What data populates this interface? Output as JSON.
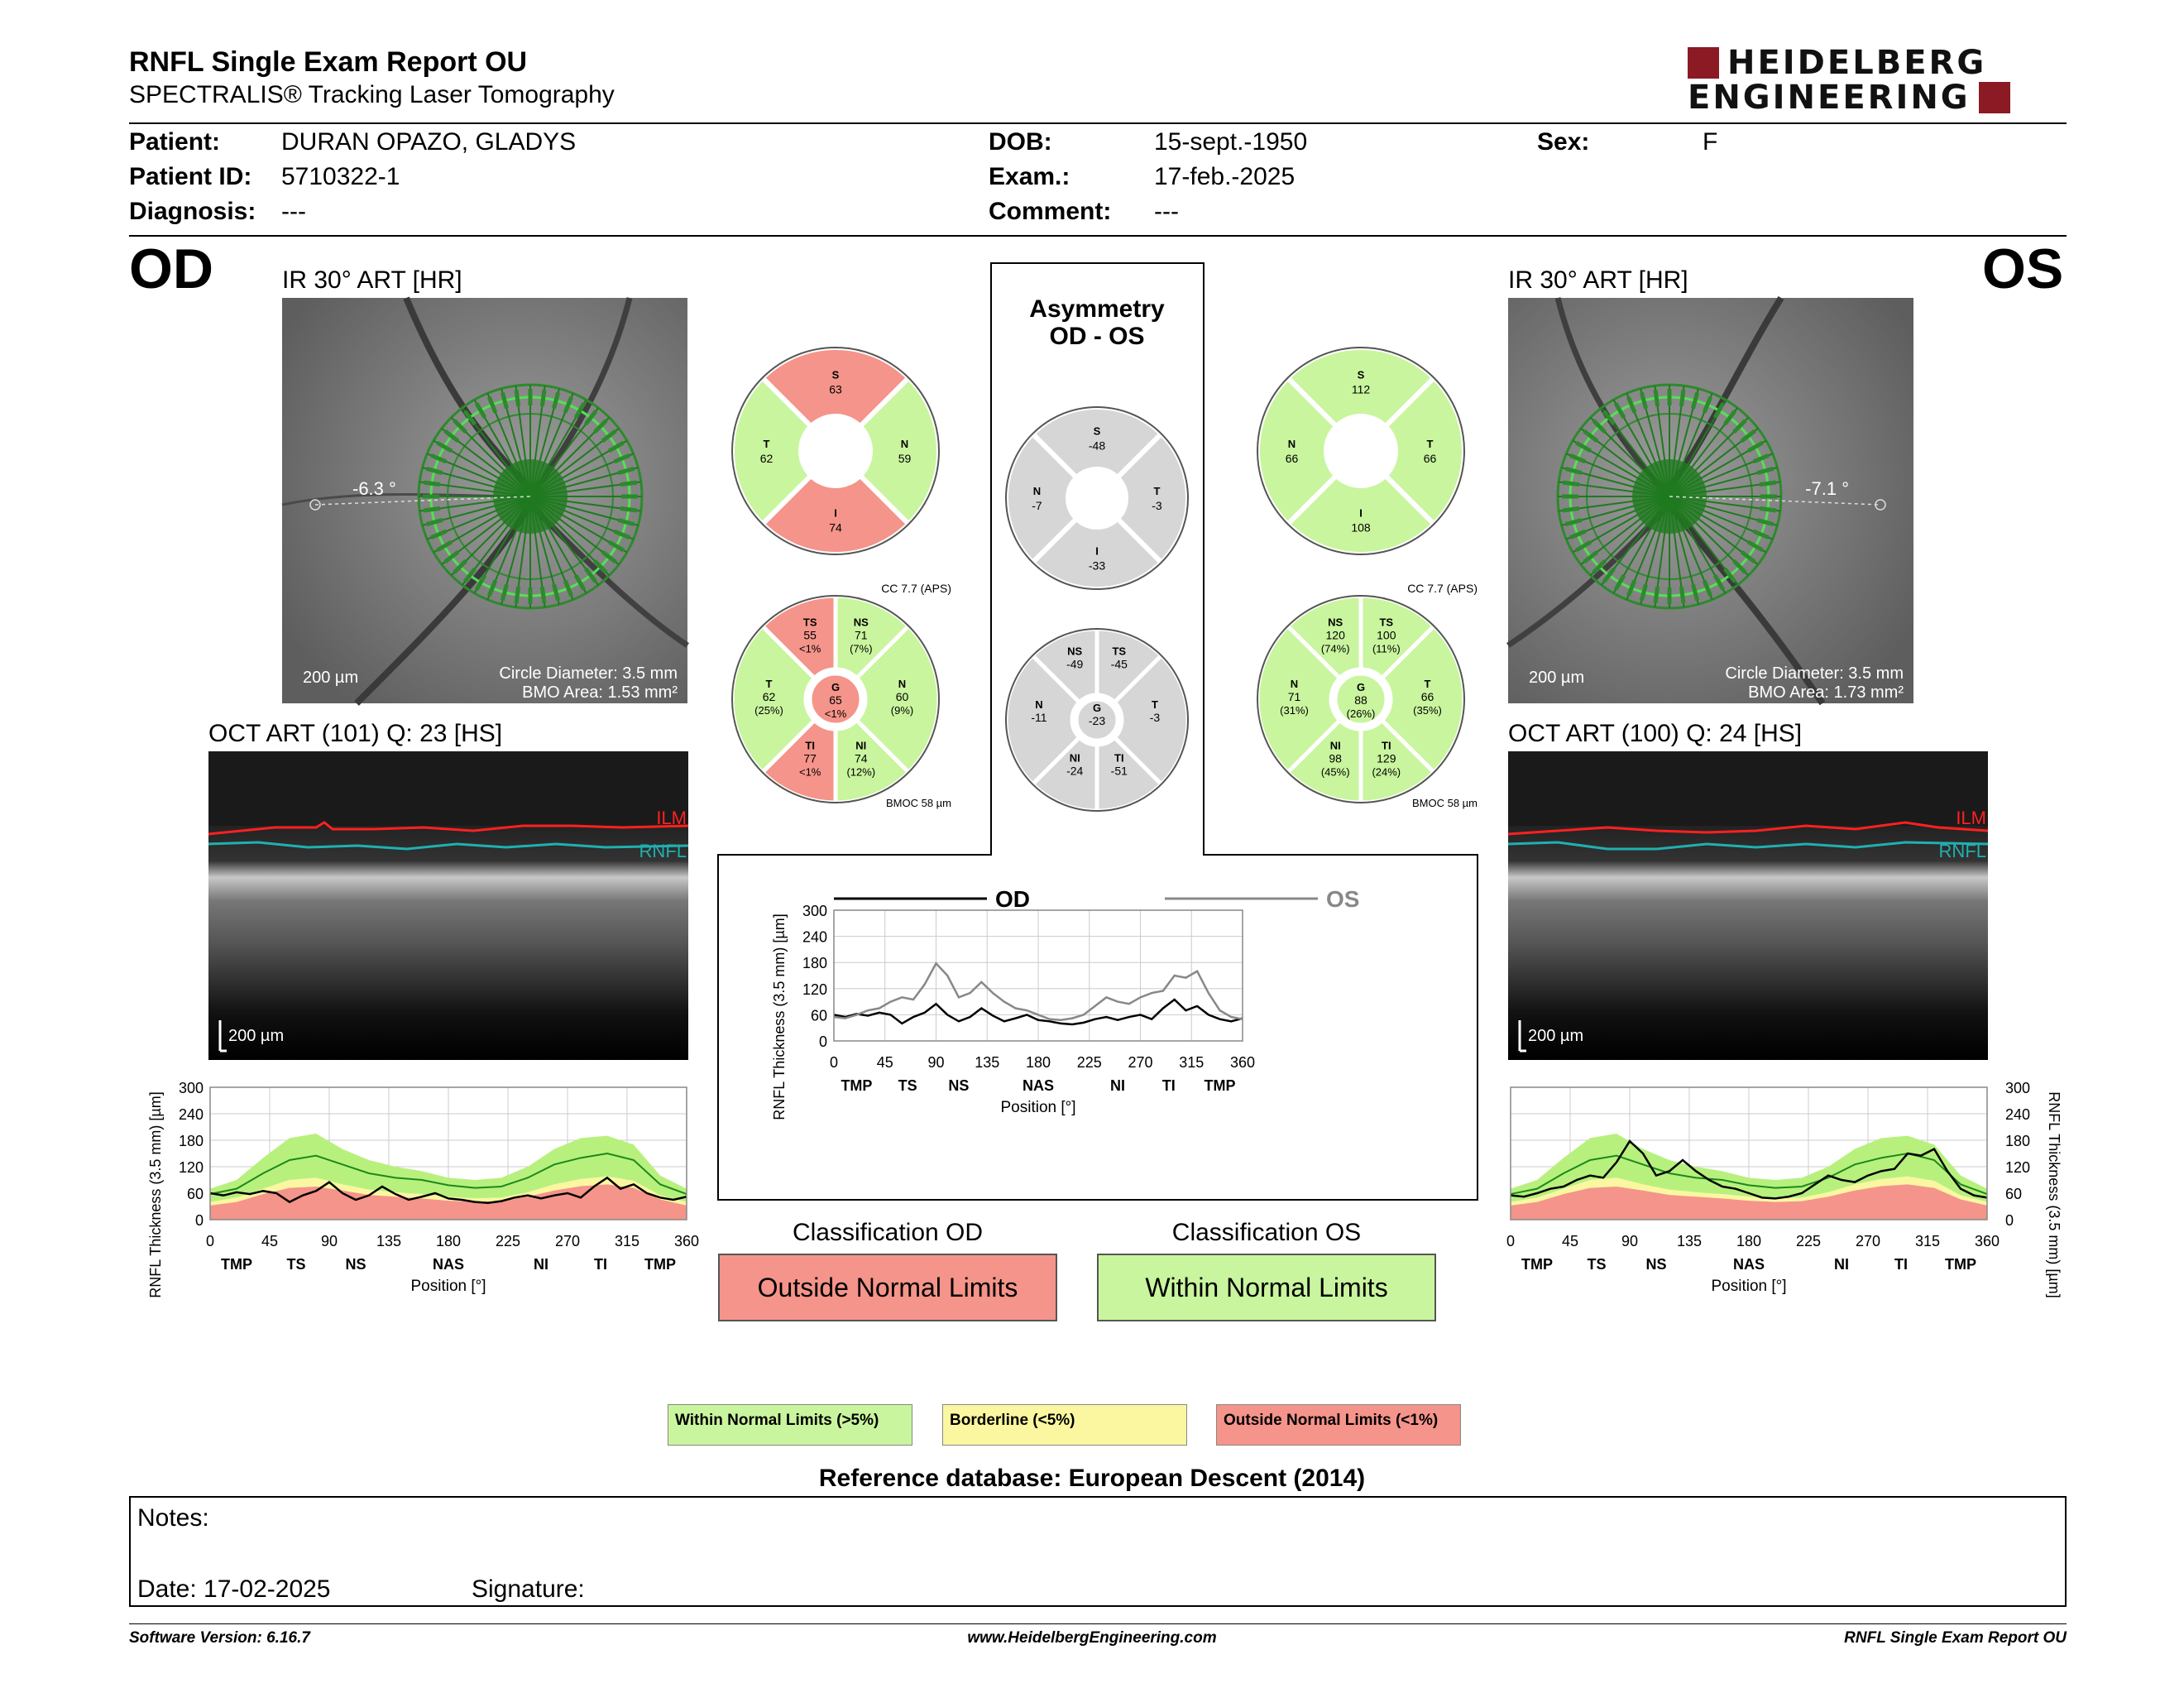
{
  "header": {
    "title": "RNFL Single Exam Report OU",
    "subtitle": "SPECTRALIS® Tracking Laser Tomography",
    "logo_line1": "HEIDELBERG",
    "logo_line2": "ENGINEERING"
  },
  "patient": {
    "patient_label": "Patient:",
    "patient_value": "DURAN OPAZO, GLADYS",
    "id_label": "Patient ID:",
    "id_value": "5710322-1",
    "diag_label": "Diagnosis:",
    "diag_value": "---",
    "dob_label": "DOB:",
    "dob_value": "15-sept.-1950",
    "exam_label": "Exam.:",
    "exam_value": "17-feb.-2025",
    "comment_label": "Comment:",
    "comment_value": "---",
    "sex_label": "Sex:",
    "sex_value": "F"
  },
  "od": {
    "eye": "OD",
    "ir_label": "IR 30° ART [HR]",
    "angle": "-6.3 °",
    "scale": "200 µm",
    "circle_diameter": "Circle Diameter: 3.5 mm",
    "bmo_area": "BMO Area: 1.53 mm²",
    "oct_label": "OCT ART (101) Q: 23 [HS]",
    "ilm": "ILM",
    "rnfl": "RNFL",
    "oct_scale": "200 µm",
    "cc": "CC 7.7 (APS)",
    "bmoc": "BMOC 58 µm",
    "q4": {
      "S": "63",
      "N": "59",
      "I": "74",
      "T": "62"
    },
    "q4_status": {
      "S": "red",
      "N": "green",
      "I": "red",
      "T": "green"
    },
    "sectors": {
      "TS": [
        "TS",
        "55",
        "<1%"
      ],
      "NS": [
        "NS",
        "71",
        "(7%)"
      ],
      "N": [
        "N",
        "60",
        "(9%)"
      ],
      "NI": [
        "NI",
        "74",
        "(12%)"
      ],
      "TI": [
        "TI",
        "77",
        "<1%"
      ],
      "T": [
        "T",
        "62",
        "(25%)"
      ],
      "G": [
        "G",
        "65",
        "<1%"
      ]
    },
    "sector_status": {
      "TS": "red",
      "NS": "green",
      "N": "green",
      "NI": "green",
      "TI": "red",
      "T": "green",
      "G": "red"
    }
  },
  "os": {
    "eye": "OS",
    "ir_label": "IR 30° ART [HR]",
    "angle": "-7.1 °",
    "scale": "200 µm",
    "circle_diameter": "Circle Diameter: 3.5 mm",
    "bmo_area": "BMO Area: 1.73 mm²",
    "oct_label": "OCT ART (100) Q: 24 [HS]",
    "ilm": "ILM",
    "rnfl": "RNFL",
    "oct_scale": "200 µm",
    "cc": "CC 7.7 (APS)",
    "bmoc": "BMOC 58 µm",
    "q4": {
      "S": "112",
      "N": "66",
      "I": "108",
      "T": "66"
    },
    "q4_status": {
      "S": "green",
      "N": "green",
      "I": "green",
      "T": "green"
    },
    "sectors": {
      "NS": [
        "NS",
        "120",
        "(74%)"
      ],
      "TS": [
        "TS",
        "100",
        "(11%)"
      ],
      "T": [
        "T",
        "66",
        "(35%)"
      ],
      "TI": [
        "TI",
        "129",
        "(24%)"
      ],
      "NI": [
        "NI",
        "98",
        "(45%)"
      ],
      "N": [
        "N",
        "71",
        "(31%)"
      ],
      "G": [
        "G",
        "88",
        "(26%)"
      ]
    },
    "sector_status": {
      "NS": "green",
      "TS": "green",
      "T": "green",
      "TI": "green",
      "NI": "green",
      "N": "green",
      "G": "green"
    }
  },
  "asymmetry": {
    "title1": "Asymmetry",
    "title2": "OD - OS",
    "q4": {
      "S": "-48",
      "N": "-7",
      "I": "-33",
      "T": "-3"
    },
    "sectors": {
      "NS": [
        "NS",
        "-49"
      ],
      "TS": [
        "TS",
        "-45"
      ],
      "T": [
        "T",
        "-3"
      ],
      "TI": [
        "TI",
        "-51"
      ],
      "NI": [
        "NI",
        "-24"
      ],
      "N": [
        "N",
        "-11"
      ],
      "G": [
        "G",
        "-23"
      ]
    }
  },
  "classification": {
    "od_title": "Classification OD",
    "od_value": "Outside Normal Limits",
    "os_title": "Classification OS",
    "os_value": "Within Normal Limits"
  },
  "legend": {
    "wnl": "Within Normal Limits (>5%)",
    "bl": "Borderline (<5%)",
    "onl": "Outside Normal Limits (<1%)"
  },
  "reference": "Reference database: European Descent (2014)",
  "notes": {
    "notes_label": "Notes:",
    "date_label": "Date: 17-02-2025",
    "signature_label": "Signature:"
  },
  "footer": {
    "version": "Software Version: 6.16.7",
    "url": "www.HeidelbergEngineering.com",
    "report": "RNFL Single Exam Report OU"
  },
  "colors": {
    "green": "#c9f59e",
    "yellow": "#faf7a0",
    "red": "#f5948a",
    "gray": "#d6d6d6"
  },
  "chart_data": [
    {
      "type": "line",
      "title": "",
      "ylabel": "RNFL Thickness (3.5 mm) [µm]",
      "xlabel": "Position [°]",
      "ylim": [
        0,
        300
      ],
      "xlim": [
        0,
        360
      ],
      "x_ticks": [
        0,
        45,
        90,
        135,
        180,
        225,
        270,
        315,
        360
      ],
      "y_ticks": [
        0,
        60,
        120,
        180,
        240,
        300
      ],
      "sector_labels": [
        [
          "TMP",
          20
        ],
        [
          "TS",
          65
        ],
        [
          "NS",
          110
        ],
        [
          "NAS",
          180
        ],
        [
          "NI",
          250
        ],
        [
          "TI",
          295
        ],
        [
          "TMP",
          340
        ]
      ],
      "series": [
        {
          "name": "OD",
          "x": [
            0,
            10,
            20,
            30,
            40,
            50,
            60,
            70,
            80,
            90,
            100,
            110,
            120,
            130,
            140,
            150,
            160,
            170,
            180,
            190,
            200,
            210,
            220,
            230,
            240,
            250,
            260,
            270,
            280,
            290,
            300,
            310,
            320,
            330,
            340,
            350,
            360
          ],
          "values": [
            60,
            55,
            62,
            58,
            65,
            60,
            40,
            55,
            65,
            85,
            60,
            45,
            55,
            75,
            58,
            45,
            52,
            60,
            48,
            45,
            40,
            38,
            42,
            50,
            55,
            48,
            55,
            60,
            50,
            75,
            95,
            70,
            80,
            60,
            50,
            45,
            52
          ]
        },
        {
          "name": "OS",
          "x": [
            0,
            10,
            20,
            30,
            40,
            50,
            60,
            70,
            80,
            90,
            100,
            110,
            120,
            130,
            140,
            150,
            160,
            170,
            180,
            190,
            200,
            210,
            220,
            230,
            240,
            250,
            260,
            270,
            280,
            290,
            300,
            310,
            320,
            330,
            340,
            350,
            360
          ],
          "values": [
            55,
            52,
            60,
            70,
            75,
            90,
            100,
            95,
            130,
            178,
            150,
            100,
            110,
            135,
            110,
            90,
            75,
            70,
            60,
            50,
            48,
            52,
            60,
            80,
            100,
            90,
            85,
            100,
            110,
            115,
            150,
            145,
            160,
            110,
            70,
            55,
            50
          ]
        }
      ]
    },
    {
      "type": "area",
      "title": "",
      "ylabel": "RNFL Thickness (3.5 mm) [µm]",
      "xlabel": "Position [°]",
      "ylim": [
        0,
        300
      ],
      "xlim": [
        0,
        360
      ],
      "x_ticks": [
        0,
        45,
        90,
        135,
        180,
        225,
        270,
        315,
        360
      ],
      "y_ticks": [
        0,
        60,
        120,
        180,
        240,
        300
      ],
      "sector_labels": [
        [
          "TMP",
          20
        ],
        [
          "TS",
          65
        ],
        [
          "NS",
          110
        ],
        [
          "NAS",
          180
        ],
        [
          "NI",
          250
        ],
        [
          "TI",
          295
        ],
        [
          "TMP",
          340
        ]
      ],
      "x": [
        0,
        20,
        40,
        60,
        80,
        100,
        120,
        140,
        160,
        180,
        200,
        220,
        240,
        260,
        280,
        300,
        320,
        340,
        360
      ],
      "normal_upper": [
        70,
        90,
        140,
        185,
        195,
        160,
        135,
        120,
        110,
        95,
        90,
        95,
        120,
        160,
        185,
        190,
        170,
        100,
        70
      ],
      "normal_mean": [
        58,
        70,
        105,
        135,
        145,
        125,
        105,
        95,
        90,
        78,
        72,
        75,
        95,
        125,
        140,
        150,
        135,
        80,
        58
      ],
      "borderline_upper": [
        40,
        50,
        70,
        90,
        95,
        80,
        68,
        62,
        58,
        52,
        48,
        50,
        62,
        80,
        92,
        98,
        88,
        55,
        40
      ],
      "onl_upper": [
        32,
        40,
        58,
        72,
        75,
        66,
        56,
        52,
        48,
        43,
        40,
        42,
        52,
        66,
        76,
        80,
        72,
        46,
        32
      ],
      "series": [
        {
          "name": "OD",
          "x": [
            0,
            10,
            20,
            30,
            40,
            50,
            60,
            70,
            80,
            90,
            100,
            110,
            120,
            130,
            140,
            150,
            160,
            170,
            180,
            190,
            200,
            210,
            220,
            230,
            240,
            250,
            260,
            270,
            280,
            290,
            300,
            310,
            320,
            330,
            340,
            350,
            360
          ],
          "values": [
            60,
            55,
            62,
            58,
            65,
            60,
            40,
            55,
            65,
            85,
            60,
            45,
            55,
            75,
            58,
            45,
            52,
            60,
            48,
            45,
            40,
            38,
            42,
            50,
            55,
            48,
            55,
            60,
            50,
            75,
            95,
            70,
            80,
            60,
            50,
            45,
            52
          ]
        }
      ]
    },
    {
      "type": "area",
      "title": "",
      "ylabel": "RNFL Thickness (3.5 mm) [µm]",
      "xlabel": "Position [°]",
      "ylim": [
        0,
        300
      ],
      "xlim": [
        0,
        360
      ],
      "x_ticks": [
        0,
        45,
        90,
        135,
        180,
        225,
        270,
        315,
        360
      ],
      "y_ticks": [
        0,
        60,
        120,
        180,
        240,
        300
      ],
      "sector_labels": [
        [
          "TMP",
          20
        ],
        [
          "TS",
          65
        ],
        [
          "NS",
          110
        ],
        [
          "NAS",
          180
        ],
        [
          "NI",
          250
        ],
        [
          "TI",
          295
        ],
        [
          "TMP",
          340
        ]
      ],
      "x": [
        0,
        20,
        40,
        60,
        80,
        100,
        120,
        140,
        160,
        180,
        200,
        220,
        240,
        260,
        280,
        300,
        320,
        340,
        360
      ],
      "normal_upper": [
        70,
        90,
        140,
        185,
        195,
        160,
        135,
        120,
        110,
        95,
        90,
        95,
        120,
        160,
        185,
        190,
        170,
        100,
        70
      ],
      "normal_mean": [
        58,
        70,
        105,
        135,
        145,
        125,
        105,
        95,
        90,
        78,
        72,
        75,
        95,
        125,
        140,
        150,
        135,
        80,
        58
      ],
      "borderline_upper": [
        40,
        50,
        70,
        90,
        95,
        80,
        68,
        62,
        58,
        52,
        48,
        50,
        62,
        80,
        92,
        98,
        88,
        55,
        40
      ],
      "onl_upper": [
        32,
        40,
        58,
        72,
        75,
        66,
        56,
        52,
        48,
        43,
        40,
        42,
        52,
        66,
        76,
        80,
        72,
        46,
        32
      ],
      "series": [
        {
          "name": "OS",
          "x": [
            0,
            10,
            20,
            30,
            40,
            50,
            60,
            70,
            80,
            90,
            100,
            110,
            120,
            130,
            140,
            150,
            160,
            170,
            180,
            190,
            200,
            210,
            220,
            230,
            240,
            250,
            260,
            270,
            280,
            290,
            300,
            310,
            320,
            330,
            340,
            350,
            360
          ],
          "values": [
            55,
            52,
            60,
            70,
            75,
            90,
            100,
            95,
            130,
            178,
            150,
            100,
            110,
            135,
            110,
            90,
            75,
            70,
            60,
            50,
            48,
            52,
            60,
            80,
            100,
            90,
            85,
            100,
            110,
            115,
            150,
            145,
            160,
            110,
            70,
            55,
            50
          ]
        }
      ]
    }
  ]
}
